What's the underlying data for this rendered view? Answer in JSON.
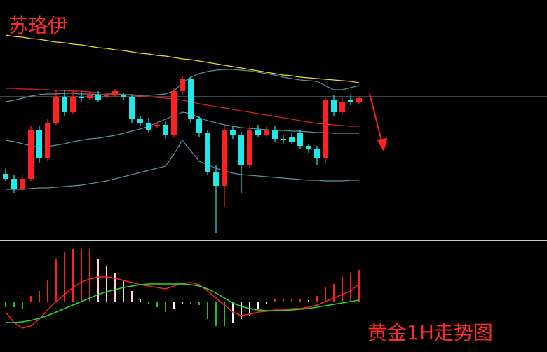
{
  "chart_data": [
    {
      "type": "candlestick",
      "title": "苏珞伊",
      "ylim": [
        0,
        340
      ],
      "up_color": "#ff2020",
      "down_color": "#20e8e8",
      "open": [
        92,
        85,
        70,
        85,
        155,
        115,
        165,
        202,
        180,
        202,
        200,
        205,
        202,
        205,
        205,
        202,
        170,
        165,
        160,
        162,
        148,
        210,
        228,
        170,
        150,
        95,
        75,
        155,
        148,
        105,
        155,
        148,
        155,
        142,
        145,
        150,
        132,
        127,
        115,
        197,
        180,
        197,
        194
      ],
      "close": [
        85,
        70,
        85,
        155,
        115,
        165,
        202,
        180,
        202,
        200,
        205,
        197,
        205,
        210,
        202,
        170,
        165,
        155,
        162,
        148,
        210,
        228,
        170,
        150,
        95,
        75,
        155,
        148,
        105,
        155,
        148,
        155,
        142,
        140,
        137,
        132,
        127,
        115,
        197,
        180,
        195,
        194,
        200
      ],
      "high": [
        100,
        90,
        90,
        160,
        160,
        170,
        212,
        212,
        212,
        210,
        210,
        210,
        208,
        213,
        208,
        205,
        175,
        172,
        165,
        168,
        215,
        232,
        232,
        175,
        155,
        105,
        160,
        160,
        152,
        160,
        162,
        160,
        160,
        148,
        150,
        155,
        135,
        132,
        200,
        205,
        200,
        205,
        202
      ],
      "low": [
        82,
        65,
        68,
        82,
        108,
        110,
        162,
        175,
        178,
        195,
        198,
        194,
        200,
        202,
        198,
        165,
        160,
        150,
        158,
        142,
        145,
        205,
        165,
        145,
        90,
        8,
        45,
        142,
        65,
        100,
        145,
        145,
        138,
        135,
        135,
        128,
        122,
        105,
        108,
        175,
        178,
        190,
        192
      ],
      "series": [
        {
          "color": "#e8e020",
          "values": [
            290,
            288,
            287,
            285,
            284,
            282,
            280,
            279,
            277,
            276,
            274,
            272,
            271,
            269,
            268,
            266,
            264,
            263,
            261,
            260,
            258,
            256,
            255,
            253,
            251,
            249,
            247,
            245,
            243,
            241,
            239,
            237,
            235,
            233,
            232,
            230,
            229,
            228,
            227,
            226,
            225,
            224,
            222
          ]
        },
        {
          "color": "#e02020",
          "values": [
            214,
            214,
            213,
            213,
            212,
            212,
            211,
            211,
            210,
            210,
            209,
            208,
            207,
            206,
            205,
            204,
            203,
            202,
            201,
            200,
            199,
            197,
            195,
            192,
            190,
            188,
            186,
            184,
            182,
            180,
            178,
            176,
            174,
            172,
            170,
            168,
            166,
            164,
            163,
            162,
            161,
            160,
            160
          ]
        },
        {
          "color": "#5f8f9f",
          "values": [
            195,
            197,
            200,
            203,
            205,
            206,
            206,
            207,
            207,
            206,
            206,
            205,
            205,
            205,
            205,
            205,
            204,
            204,
            205,
            206,
            210,
            222,
            230,
            235,
            238,
            240,
            241,
            241,
            240,
            239,
            237,
            235,
            233,
            230,
            228,
            226,
            225,
            224,
            218,
            212,
            212,
            215,
            218
          ]
        },
        {
          "color": "#5f8f9f",
          "values": [
            140,
            138,
            135,
            132,
            130,
            131,
            133,
            135,
            138,
            140,
            142,
            143,
            145,
            147,
            150,
            153,
            156,
            160,
            165,
            170,
            175,
            180,
            178,
            172,
            168,
            165,
            162,
            160,
            158,
            157,
            156,
            155,
            154,
            154,
            153,
            153,
            152,
            151,
            151,
            150,
            150,
            150,
            150
          ]
        },
        {
          "color": "#5f8f9f",
          "values": [
            70,
            70,
            70,
            71,
            72,
            72,
            73,
            74,
            75,
            76,
            78,
            80,
            82,
            85,
            88,
            91,
            94,
            97,
            100,
            103,
            120,
            140,
            125,
            110,
            105,
            100,
            96,
            93,
            91,
            90,
            89,
            88,
            87,
            86,
            85,
            84,
            83,
            83,
            82,
            82,
            82,
            83,
            83
          ]
        }
      ]
    },
    {
      "type": "macd",
      "annotation": "黄金1H走势图",
      "ylim": [
        -70,
        85
      ],
      "bar_colors": {
        "rise": "#ff2020",
        "fall": "#ffd0d0",
        "neg_fall": "#20c020",
        "neg_rise": "#ffffff"
      },
      "values": [
        -8,
        -8,
        -10,
        8,
        15,
        30,
        60,
        70,
        75,
        75,
        75,
        60,
        50,
        40,
        30,
        15,
        3,
        -3,
        -8,
        -15,
        -10,
        -3,
        -3,
        -5,
        -25,
        -35,
        -35,
        -30,
        -25,
        -20,
        -10,
        -3,
        3,
        4,
        4,
        4,
        2,
        8,
        20,
        25,
        35,
        40,
        45
      ],
      "series": [
        {
          "color": "#ff2020",
          "values": [
            -15,
            -30,
            -38,
            -35,
            -25,
            -12,
            0,
            10,
            20,
            28,
            32,
            35,
            35,
            33,
            30,
            27,
            24,
            22,
            20,
            18,
            22,
            26,
            27,
            24,
            15,
            5,
            -5,
            -15,
            -20,
            -18,
            -15,
            -14,
            -12,
            -12,
            -10,
            -10,
            -8,
            -5,
            0,
            5,
            10,
            15,
            25
          ]
        },
        {
          "color": "#20e020",
          "values": [
            -30,
            -30,
            -29,
            -27,
            -24,
            -20,
            -15,
            -10,
            -5,
            0,
            5,
            10,
            14,
            17,
            20,
            22,
            24,
            25,
            25,
            25,
            25,
            25,
            24,
            22,
            18,
            12,
            5,
            -2,
            -7,
            -10,
            -12,
            -13,
            -13,
            -13,
            -12,
            -11,
            -10,
            -8,
            -6,
            -4,
            -2,
            0,
            2
          ]
        }
      ]
    }
  ]
}
